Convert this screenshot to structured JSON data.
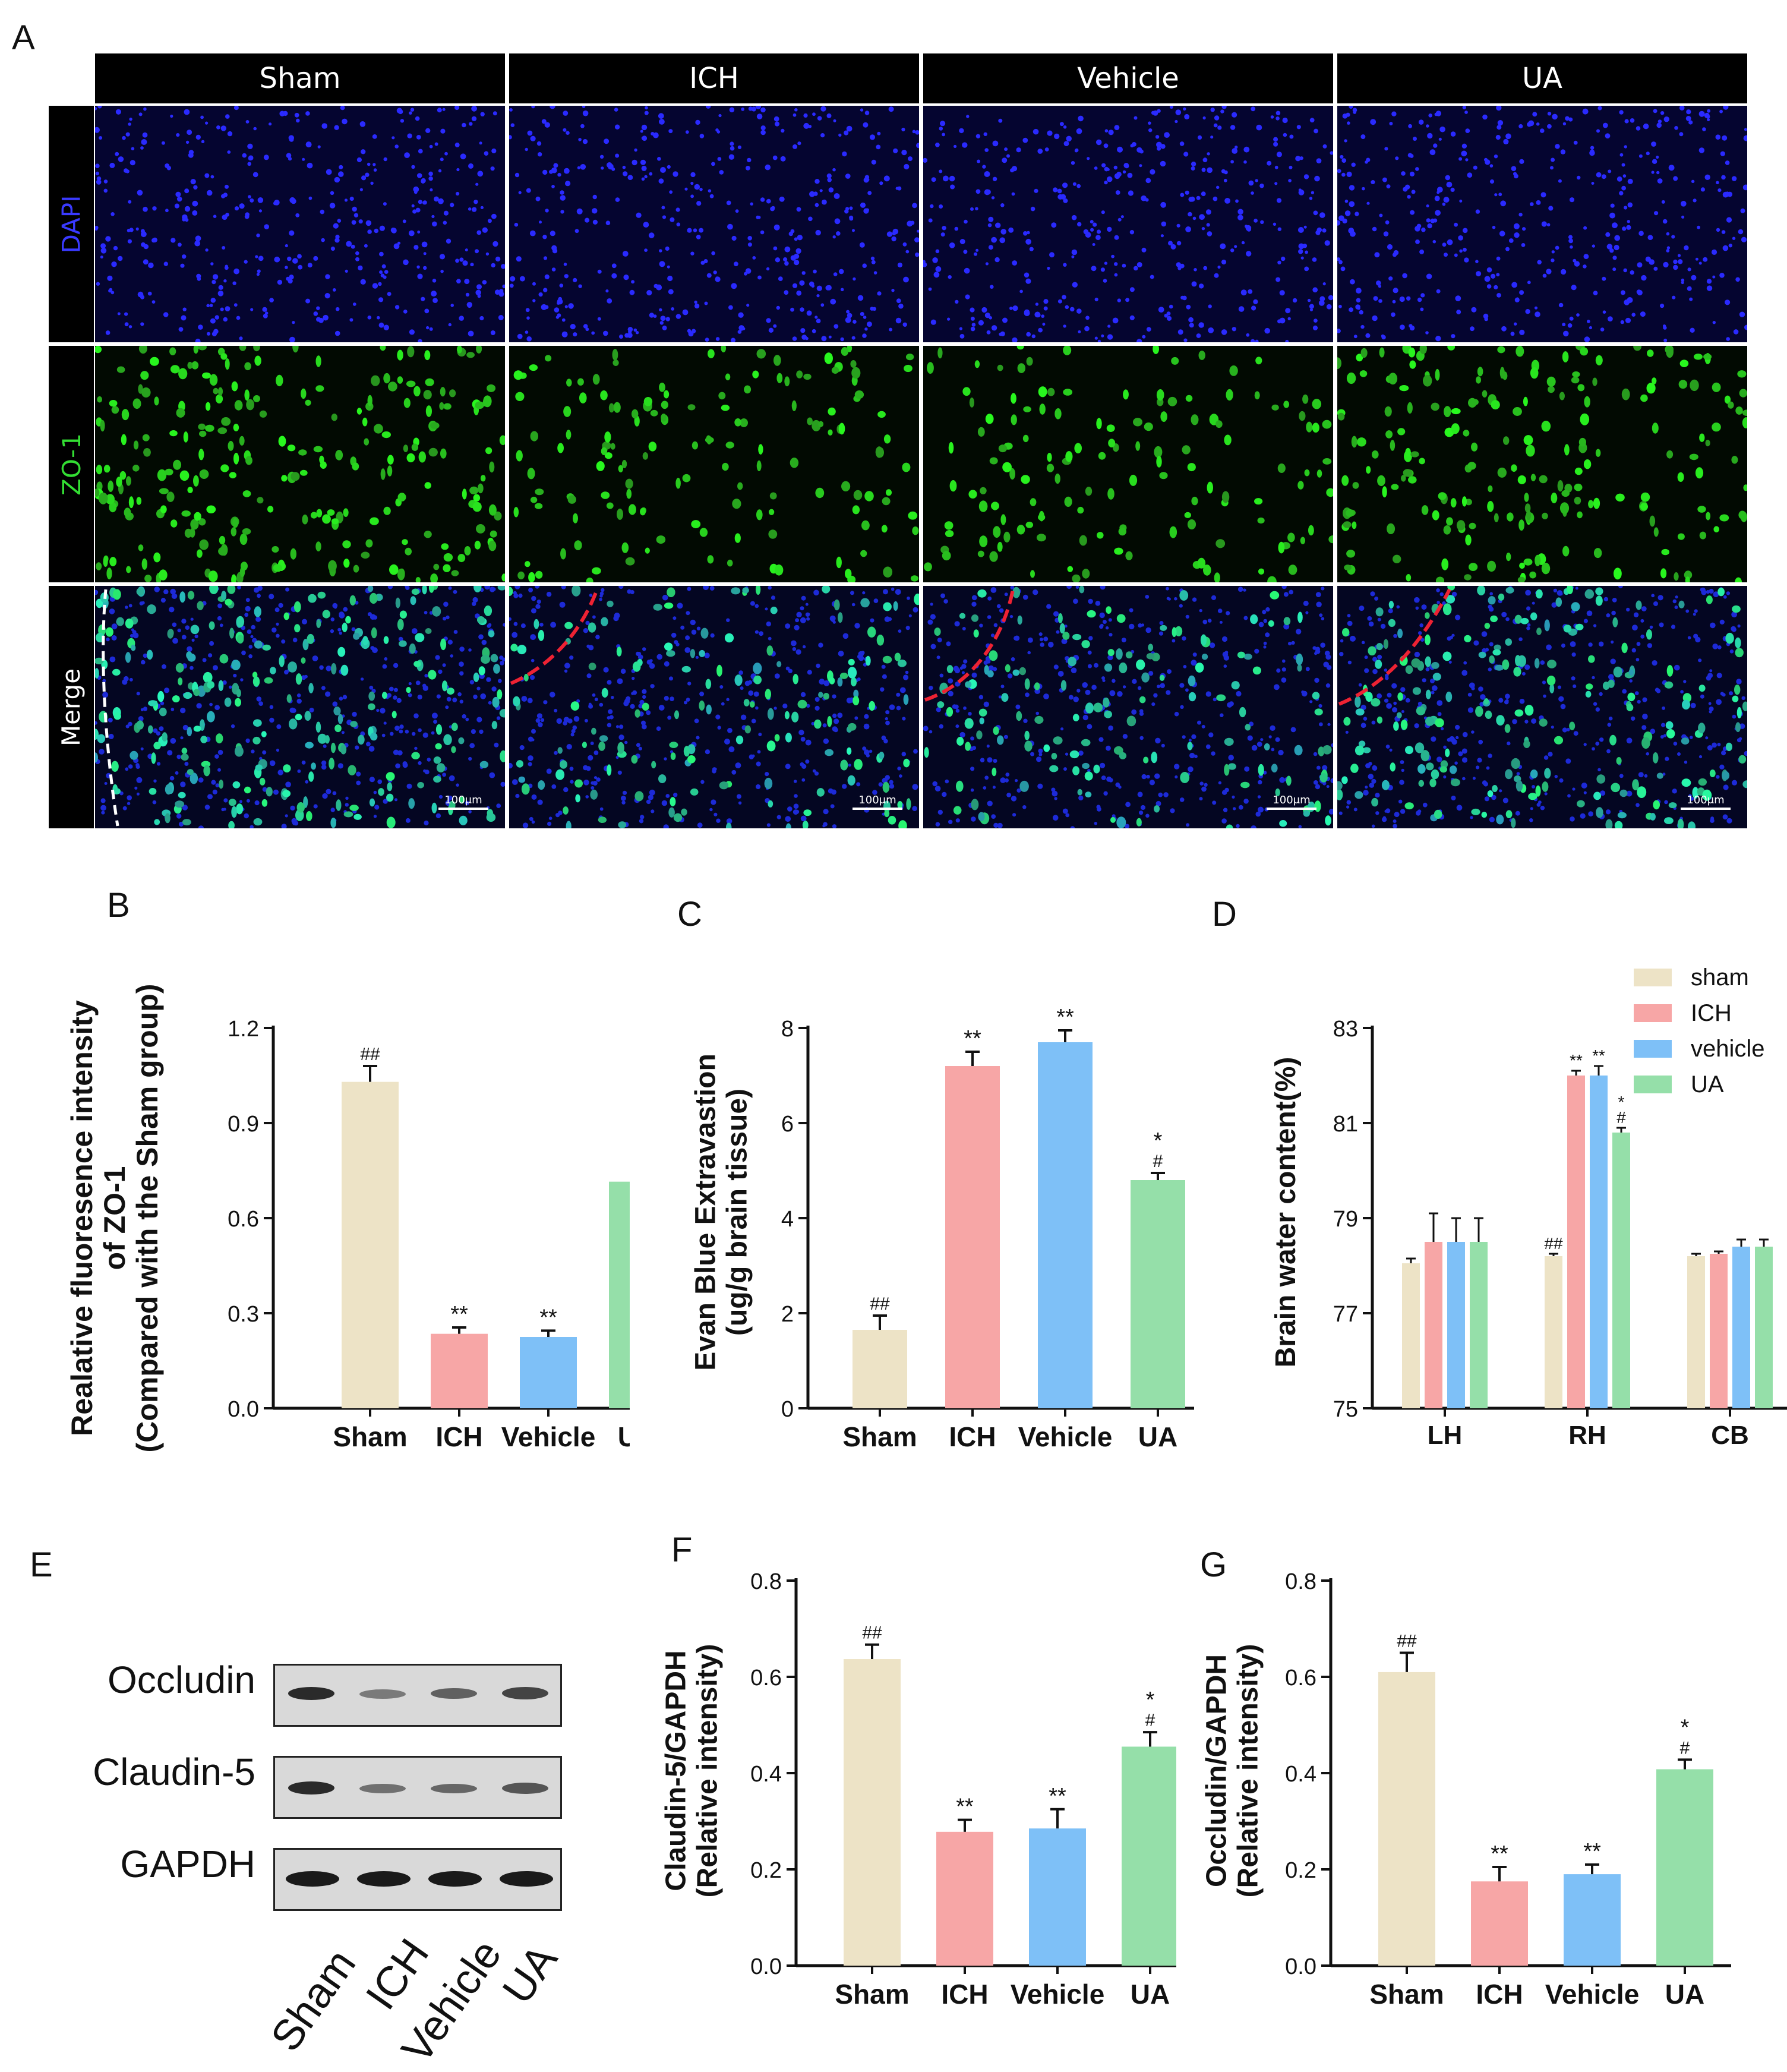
{
  "panel_letters": {
    "a": "A",
    "b": "B",
    "c": "C",
    "d": "D",
    "e": "E",
    "f": "F",
    "g": "G"
  },
  "panel_a": {
    "columns": [
      "Sham",
      "ICH",
      "Vehicle",
      "UA"
    ],
    "rows": [
      {
        "label": "DAPI",
        "color": "#3a3aff"
      },
      {
        "label": "ZO-1",
        "color": "#33dd33"
      },
      {
        "label": "Merge",
        "color": "#ffffff"
      }
    ],
    "scale_bar": "100μm"
  },
  "chart_data": [
    {
      "id": "B",
      "type": "bar",
      "categories": [
        "Sham",
        "ICH",
        "Vehicle",
        "UA"
      ],
      "values": [
        1.03,
        0.235,
        0.225,
        0.715
      ],
      "errors": [
        0.05,
        0.02,
        0.02,
        0.04
      ],
      "colors": [
        "#ede3c6",
        "#f7a6a6",
        "#7ec0f7",
        "#95dfa9"
      ],
      "annotations": [
        "##",
        "**",
        "**",
        "*\n#"
      ],
      "ylabel": "Realative fluoresence intensity\nof  ZO-1\n(Compared with the Sham group)",
      "ylim": [
        0,
        1.2
      ],
      "yticks": [
        "0.0",
        "0.3",
        "0.6",
        "0.9",
        "1.2"
      ]
    },
    {
      "id": "C",
      "type": "bar",
      "categories": [
        "Sham",
        "ICH",
        "Vehicle",
        "UA"
      ],
      "values": [
        1.65,
        7.2,
        7.7,
        4.8
      ],
      "errors": [
        0.3,
        0.3,
        0.25,
        0.15
      ],
      "colors": [
        "#ede3c6",
        "#f7a6a6",
        "#7ec0f7",
        "#95dfa9"
      ],
      "annotations": [
        "##",
        "**",
        "**",
        "*\n#"
      ],
      "ylabel": "Evan Blue Extravastion\n(ug/g brain tissue)",
      "ylim": [
        0,
        8
      ],
      "yticks": [
        "0",
        "2",
        "4",
        "6",
        "8"
      ]
    },
    {
      "id": "D",
      "type": "bar",
      "categories": [
        "LH",
        "RH",
        "CB"
      ],
      "series": [
        {
          "name": "sham",
          "values": [
            78.05,
            78.2,
            78.2
          ],
          "errors": [
            0.1,
            0.05,
            0.05
          ],
          "color": "#ede3c6",
          "annotations": [
            "",
            "##",
            ""
          ]
        },
        {
          "name": "ICH",
          "values": [
            78.5,
            82.0,
            78.25
          ],
          "errors": [
            0.6,
            0.1,
            0.05
          ],
          "color": "#f7a6a6",
          "annotations": [
            "",
            "**",
            ""
          ]
        },
        {
          "name": "vehicle",
          "values": [
            78.5,
            82.0,
            78.4
          ],
          "errors": [
            0.5,
            0.2,
            0.15
          ],
          "color": "#7ec0f7",
          "annotations": [
            "",
            "**",
            ""
          ]
        },
        {
          "name": "UA",
          "values": [
            78.5,
            80.8,
            78.4
          ],
          "errors": [
            0.5,
            0.1,
            0.15
          ],
          "color": "#95dfa9",
          "annotations": [
            "",
            "*\n#",
            ""
          ]
        }
      ],
      "ylabel": "Brain water content(%)",
      "ylim": [
        75,
        83
      ],
      "yticks": [
        "75",
        "77",
        "79",
        "81",
        "83"
      ]
    },
    {
      "id": "F",
      "type": "bar",
      "categories": [
        "Sham",
        "ICH",
        "Vehicle",
        "UA"
      ],
      "values": [
        0.637,
        0.278,
        0.285,
        0.455
      ],
      "errors": [
        0.03,
        0.025,
        0.04,
        0.03
      ],
      "colors": [
        "#ede3c6",
        "#f7a6a6",
        "#7ec0f7",
        "#95dfa9"
      ],
      "annotations": [
        "##",
        "**",
        "**",
        "*\n#"
      ],
      "ylabel": "Claudin-5/GAPDH\n(Relative intensity)",
      "ylim": [
        0,
        0.8
      ],
      "yticks": [
        "0.0",
        "0.2",
        "0.4",
        "0.6",
        "0.8"
      ]
    },
    {
      "id": "G",
      "type": "bar",
      "categories": [
        "Sham",
        "ICH",
        "Vehicle",
        "UA"
      ],
      "values": [
        0.61,
        0.175,
        0.19,
        0.408
      ],
      "errors": [
        0.04,
        0.03,
        0.02,
        0.02
      ],
      "colors": [
        "#ede3c6",
        "#f7a6a6",
        "#7ec0f7",
        "#95dfa9"
      ],
      "annotations": [
        "##",
        "**",
        "**",
        "*\n#"
      ],
      "ylabel": "Occludin/GAPDH\n(Relative intensity)",
      "ylim": [
        0,
        0.8
      ],
      "yticks": [
        "0.0",
        "0.2",
        "0.4",
        "0.6",
        "0.8"
      ]
    }
  ],
  "panel_e": {
    "proteins": [
      "Occludin",
      "Claudin-5",
      "GAPDH"
    ],
    "lanes": [
      "Sham",
      "ICH",
      "Vehicle",
      "UA"
    ]
  }
}
